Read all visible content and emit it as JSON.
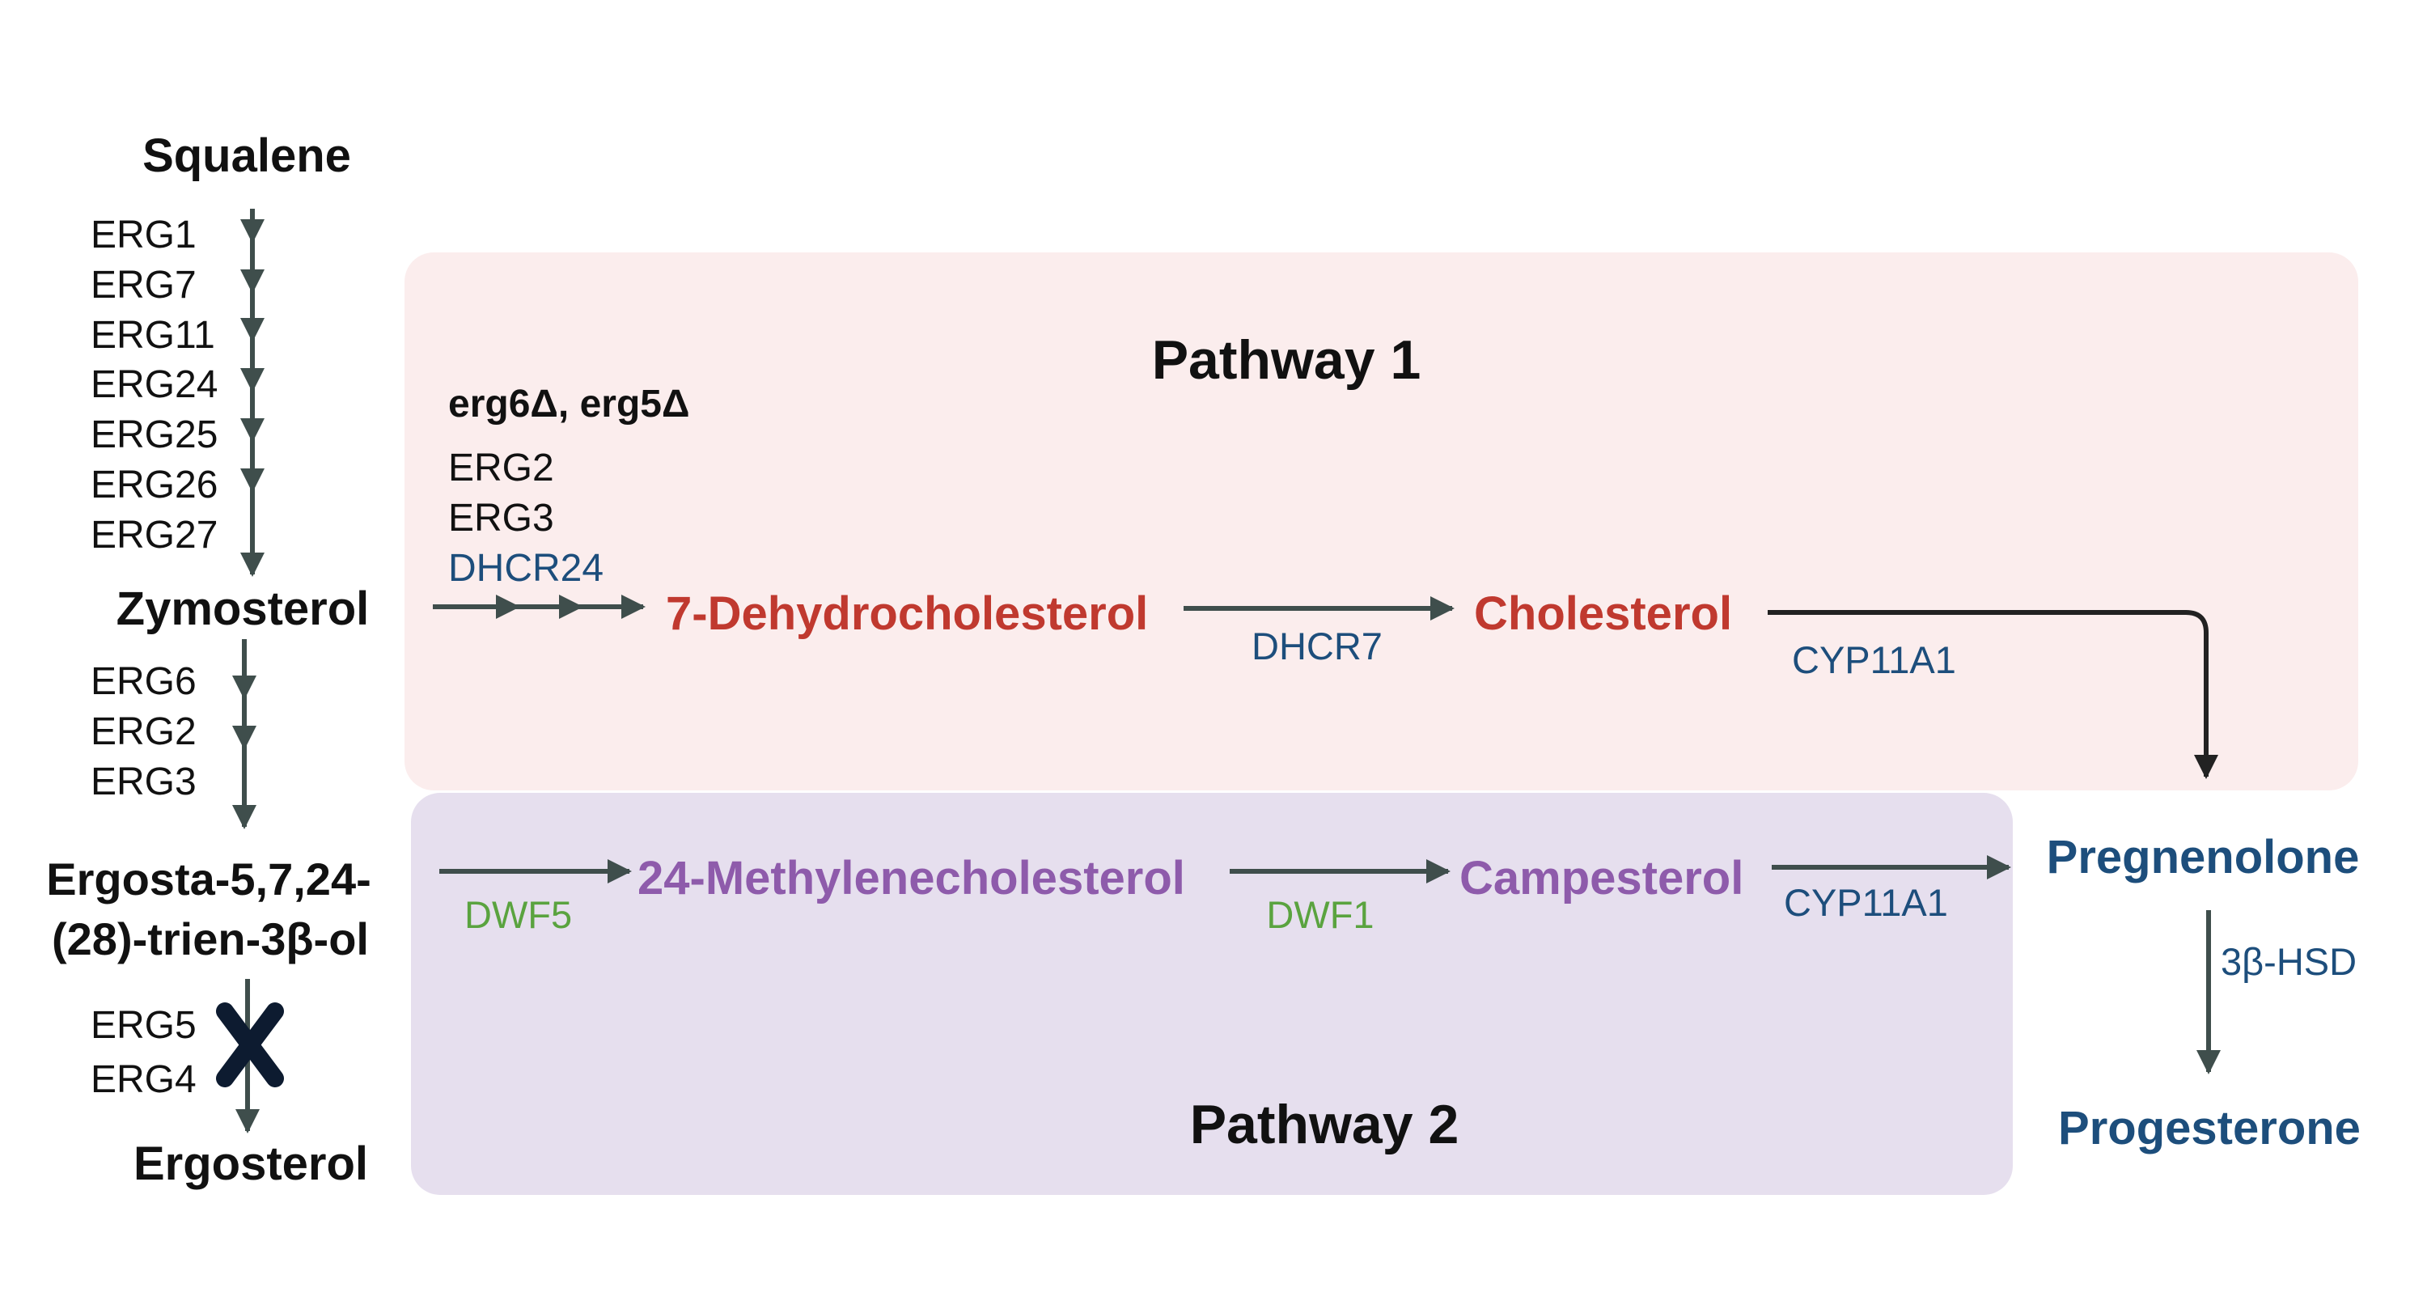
{
  "colors": {
    "black": "#111111",
    "arrow": "#3f4e4c",
    "red": "#c0392f",
    "purple": "#8e5bab",
    "blue": "#1d4e7c",
    "green": "#5aa33f",
    "pathway1_bg": "#fbeded",
    "pathway2_bg": "#e6dfee",
    "cross": "#0d1b30"
  },
  "yeast_pathway": {
    "squalene": "Squalene",
    "enzymes_top": [
      "ERG1",
      "ERG7",
      "ERG11",
      "ERG24",
      "ERG25",
      "ERG26",
      "ERG27"
    ],
    "zymosterol": "Zymosterol",
    "enzymes_mid": [
      "ERG6",
      "ERG2",
      "ERG3"
    ],
    "ergosta_line1": "Ergosta-5,7,24-",
    "ergosta_line2": "(28)-trien-3β-ol",
    "enzymes_bottom": [
      "ERG5",
      "ERG4"
    ],
    "ergosterol": "Ergosterol"
  },
  "pathway1": {
    "title": "Pathway 1",
    "knockout": "erg6Δ, erg5Δ",
    "enzymes_start": [
      "ERG2",
      "ERG3",
      "DHCR24"
    ],
    "dehydrocholesterol": "7-Dehydrocholesterol",
    "dhcr7": "DHCR7",
    "cholesterol": "Cholesterol",
    "cyp11a1": "CYP11A1"
  },
  "pathway2": {
    "title": "Pathway 2",
    "dwf5": "DWF5",
    "methylenecholesterol": "24-Methylenecholesterol",
    "dwf1": "DWF1",
    "campesterol": "Campesterol",
    "cyp11a1": "CYP11A1"
  },
  "steroids": {
    "pregnenolone": "Pregnenolone",
    "hsd": "3β-HSD",
    "progesterone": "Progesterone"
  }
}
